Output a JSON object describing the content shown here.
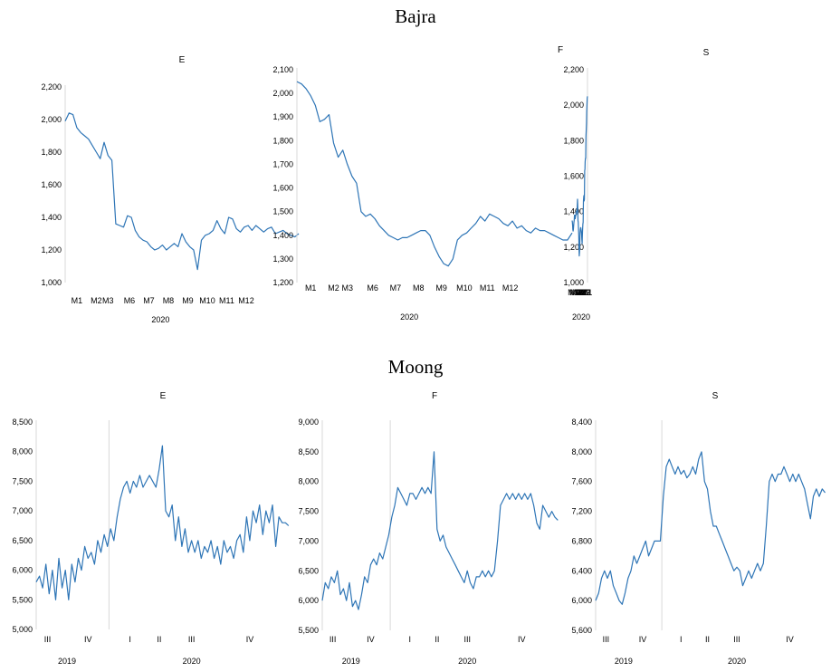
{
  "sections": [
    {
      "title": "Bajra"
    },
    {
      "title": "Moong"
    }
  ],
  "chart_data": [
    {
      "type": "line",
      "group": "Bajra",
      "title": "E",
      "ylim": [
        1000,
        2200
      ],
      "yticks": [
        "1,000",
        "1,200",
        "1,400",
        "1,600",
        "1,800",
        "2,000",
        "2,200"
      ],
      "xlim": [
        0.4,
        12.4
      ],
      "xticks": [
        {
          "label": "M1",
          "x": 1
        },
        {
          "label": "M2",
          "x": 2
        },
        {
          "label": "M3",
          "x": 2.6
        },
        {
          "label": "M6",
          "x": 3.7
        },
        {
          "label": "M7",
          "x": 4.7
        },
        {
          "label": "M8",
          "x": 5.7
        },
        {
          "label": "M9",
          "x": 6.7
        },
        {
          "label": "M10",
          "x": 7.7
        },
        {
          "label": "M11",
          "x": 8.7
        },
        {
          "label": "M12",
          "x": 9.7
        }
      ],
      "xgroups": [
        {
          "label": "2020",
          "x": 5.3
        }
      ],
      "grid": false,
      "color": "#2e75b6",
      "x": [
        0.4,
        0.6,
        0.8,
        1.0,
        1.2,
        1.4,
        1.6,
        1.8,
        2.0,
        2.2,
        2.4,
        2.6,
        2.8,
        3.0,
        3.2,
        3.4,
        3.6,
        3.8,
        4.0,
        4.2,
        4.4,
        4.6,
        4.8,
        5.0,
        5.2,
        5.4,
        5.6,
        5.8,
        6.0,
        6.2,
        6.4,
        6.6,
        6.8,
        7.0,
        7.2,
        7.4,
        7.6,
        7.8,
        8.0,
        8.2,
        8.4,
        8.6,
        8.8,
        9.0,
        9.2,
        9.4,
        9.6,
        9.8,
        10.0,
        10.2,
        10.4,
        10.6,
        10.8,
        11.0,
        11.2,
        11.4,
        11.6,
        11.8,
        12.0,
        12.2,
        12.4
      ],
      "y": [
        1990,
        2040,
        2030,
        1950,
        1920,
        1900,
        1880,
        1840,
        1800,
        1760,
        1860,
        1780,
        1750,
        1360,
        1350,
        1340,
        1410,
        1400,
        1320,
        1280,
        1260,
        1250,
        1220,
        1200,
        1210,
        1230,
        1200,
        1220,
        1240,
        1220,
        1300,
        1250,
        1220,
        1200,
        1080,
        1260,
        1290,
        1300,
        1320,
        1380,
        1330,
        1300,
        1400,
        1390,
        1330,
        1310,
        1340,
        1350,
        1320,
        1350,
        1330,
        1310,
        1330,
        1340,
        1300,
        1310,
        1320,
        1300,
        1290,
        1280,
        1300
      ]
    },
    {
      "type": "line",
      "group": "Bajra",
      "title": "F",
      "ylim": [
        1200,
        2100
      ],
      "yticks": [
        "1,200",
        "1,300",
        "1,400",
        "1,500",
        "1,600",
        "1,700",
        "1,800",
        "1,900",
        "2,000",
        "2,100"
      ],
      "xlim": [
        0.4,
        12.4
      ],
      "xticks": [
        {
          "label": "M1",
          "x": 1
        },
        {
          "label": "M2",
          "x": 2
        },
        {
          "label": "M3",
          "x": 2.6
        },
        {
          "label": "M6",
          "x": 3.7
        },
        {
          "label": "M7",
          "x": 4.7
        },
        {
          "label": "M8",
          "x": 5.7
        },
        {
          "label": "M9",
          "x": 6.7
        },
        {
          "label": "M10",
          "x": 7.7
        },
        {
          "label": "M11",
          "x": 8.7
        },
        {
          "label": "M12",
          "x": 9.7
        }
      ],
      "xgroups": [
        {
          "label": "2020",
          "x": 5.3
        }
      ],
      "grid": false,
      "color": "#2e75b6",
      "x": [
        0.4,
        0.6,
        0.8,
        1.0,
        1.2,
        1.4,
        1.6,
        1.8,
        2.0,
        2.2,
        2.4,
        2.6,
        2.8,
        3.0,
        3.2,
        3.4,
        3.6,
        3.8,
        4.0,
        4.2,
        4.4,
        4.6,
        4.8,
        5.0,
        5.2,
        5.4,
        5.6,
        5.8,
        6.0,
        6.2,
        6.4,
        6.6,
        6.8,
        7.0,
        7.2,
        7.4,
        7.6,
        7.8,
        8.0,
        8.2,
        8.4,
        8.6,
        8.8,
        9.0,
        9.2,
        9.4,
        9.6,
        9.8,
        10.0,
        10.2,
        10.4,
        10.6,
        10.8,
        11.0,
        11.2,
        11.4,
        11.6,
        11.8,
        12.0,
        12.2,
        12.4
      ],
      "y": [
        2050,
        2040,
        2020,
        1990,
        1950,
        1880,
        1890,
        1910,
        1790,
        1730,
        1760,
        1700,
        1650,
        1620,
        1500,
        1480,
        1490,
        1470,
        1440,
        1420,
        1400,
        1390,
        1380,
        1390,
        1390,
        1400,
        1410,
        1420,
        1420,
        1400,
        1350,
        1310,
        1280,
        1270,
        1300,
        1380,
        1400,
        1410,
        1430,
        1450,
        1480,
        1460,
        1490,
        1480,
        1470,
        1450,
        1440,
        1460,
        1430,
        1440,
        1420,
        1410,
        1430,
        1420,
        1420,
        1410,
        1400,
        1390,
        1380,
        1380,
        1410
      ]
    },
    {
      "type": "line",
      "group": "Bajra",
      "title": "S",
      "ylim": [
        1000,
        2200
      ],
      "yticks": [
        "1,000",
        "1,200",
        "1,400",
        "1,600",
        "1,800",
        "2,000",
        "2,200"
      ],
      "xlim": [
        0.4,
        12.4
      ],
      "xticks": [
        {
          "label": "M1",
          "x": 1
        },
        {
          "label": "M2",
          "x": 2
        },
        {
          "label": "M3",
          "x": 2.6
        },
        {
          "label": "M6",
          "x": 3.7
        },
        {
          "label": "M7",
          "x": 4.7
        },
        {
          "label": "M8",
          "x": 5.7
        },
        {
          "label": "M9",
          "x": 6.7
        },
        {
          "label": "M10",
          "x": 7.7
        },
        {
          "label": "M11",
          "x": 8.7
        },
        {
          "label": "M12",
          "x": 9.7
        }
      ],
      "xgroups": [
        {
          "label": "2020",
          "x": 5.3
        }
      ],
      "grid": false,
      "color": "#2e75b6",
      "x": [
        0.4,
        0.6,
        0.8,
        1.0,
        1.2,
        1.4,
        1.6,
        1.8,
        2.0,
        2.2,
        2.4,
        2.6,
        2.8,
        3.0,
        3.2,
        3.4,
        3.6,
        3.8,
        4.0,
        4.2,
        4.4,
        4.6,
        4.8,
        5.0,
        5.2,
        5.4,
        5.6,
        5.8,
        6.0,
        6.2,
        6.4,
        6.6,
        6.8,
        7.0,
        7.2,
        7.4,
        7.6,
        7.8,
        8.0,
        8.2,
        8.4,
        8.6,
        8.8,
        9.0,
        9.2,
        9.4,
        9.6,
        9.8,
        10.0,
        10.2,
        10.4,
        10.6,
        10.8,
        11.0,
        11.2,
        11.4,
        11.6,
        11.8,
        12.0,
        12.2,
        12.4
      ],
      "y": [
        2050,
        2040,
        2000,
        1960,
        1900,
        1860,
        1820,
        1700,
        1700,
        1680,
        1640,
        1630,
        1470,
        1460,
        1490,
        1480,
        1460,
        1340,
        1330,
        1300,
        1260,
        1220,
        1240,
        1270,
        1290,
        1300,
        1310,
        1310,
        1300,
        1280,
        1220,
        1170,
        1150,
        1200,
        1260,
        1300,
        1340,
        1350,
        1440,
        1470,
        1430,
        1410,
        1400,
        1390,
        1400,
        1380,
        1380,
        1370,
        1360,
        1380,
        1370,
        1380,
        1350,
        1340,
        1320,
        1300,
        1290,
        1300,
        1320,
        1340,
        1350
      ]
    },
    {
      "type": "line",
      "group": "Moong",
      "title": "E",
      "ylim": [
        5000,
        8500
      ],
      "yticks": [
        "5,000",
        "5,500",
        "6,000",
        "6,500",
        "7,000",
        "7,500",
        "8,000",
        "8,500"
      ],
      "xlim": [
        0,
        16
      ],
      "xticks": [
        {
          "label": "III",
          "x": 0.7
        },
        {
          "label": "IV",
          "x": 3.2
        },
        {
          "label": "I",
          "x": 5.8
        },
        {
          "label": "II",
          "x": 7.6
        },
        {
          "label": "III",
          "x": 9.6
        },
        {
          "label": "IV",
          "x": 13.2
        }
      ],
      "xgroups": [
        {
          "label": "2019",
          "x": 1.9
        },
        {
          "label": "2020",
          "x": 9.6
        }
      ],
      "divider_x": 4.5,
      "grid": false,
      "color": "#2e75b6",
      "x": [
        0,
        0.2,
        0.4,
        0.6,
        0.8,
        1.0,
        1.2,
        1.4,
        1.6,
        1.8,
        2.0,
        2.2,
        2.4,
        2.6,
        2.8,
        3.0,
        3.2,
        3.4,
        3.6,
        3.8,
        4.0,
        4.2,
        4.4,
        4.6,
        4.8,
        5.0,
        5.2,
        5.4,
        5.6,
        5.8,
        6.0,
        6.2,
        6.4,
        6.6,
        6.8,
        7.0,
        7.2,
        7.4,
        7.6,
        7.8,
        8.0,
        8.2,
        8.4,
        8.6,
        8.8,
        9.0,
        9.2,
        9.4,
        9.6,
        9.8,
        10.0,
        10.2,
        10.4,
        10.6,
        10.8,
        11.0,
        11.2,
        11.4,
        11.6,
        11.8,
        12.0,
        12.2,
        12.4,
        12.6,
        12.8,
        13.0,
        13.2,
        13.4,
        13.6,
        13.8,
        14.0,
        14.2,
        14.4,
        14.6,
        14.8,
        15.0,
        15.2,
        15.4,
        15.6
      ],
      "y": [
        5800,
        5900,
        5700,
        6100,
        5600,
        6000,
        5500,
        6200,
        5700,
        6000,
        5500,
        6100,
        5800,
        6200,
        6000,
        6400,
        6200,
        6300,
        6100,
        6500,
        6300,
        6600,
        6400,
        6700,
        6500,
        6900,
        7200,
        7400,
        7500,
        7300,
        7500,
        7400,
        7600,
        7400,
        7500,
        7600,
        7500,
        7400,
        7700,
        8100,
        7000,
        6900,
        7100,
        6500,
        6900,
        6400,
        6700,
        6300,
        6500,
        6300,
        6500,
        6200,
        6400,
        6300,
        6500,
        6200,
        6400,
        6100,
        6500,
        6300,
        6400,
        6200,
        6500,
        6600,
        6300,
        6900,
        6500,
        7000,
        6800,
        7100,
        6600,
        7000,
        6800,
        7100,
        6400,
        6900,
        6800,
        6800,
        6750
      ]
    },
    {
      "type": "line",
      "group": "Moong",
      "title": "F",
      "ylim": [
        5500,
        9000
      ],
      "yticks": [
        "5,500",
        "6,000",
        "6,500",
        "7,000",
        "7,500",
        "8,000",
        "8,500",
        "9,000"
      ],
      "xlim": [
        0,
        16
      ],
      "xticks": [
        {
          "label": "III",
          "x": 0.7
        },
        {
          "label": "IV",
          "x": 3.2
        },
        {
          "label": "I",
          "x": 5.8
        },
        {
          "label": "II",
          "x": 7.6
        },
        {
          "label": "III",
          "x": 9.6
        },
        {
          "label": "IV",
          "x": 13.2
        }
      ],
      "xgroups": [
        {
          "label": "2019",
          "x": 1.9
        },
        {
          "label": "2020",
          "x": 9.6
        }
      ],
      "divider_x": 4.5,
      "grid": false,
      "color": "#2e75b6",
      "x": [
        0,
        0.2,
        0.4,
        0.6,
        0.8,
        1.0,
        1.2,
        1.4,
        1.6,
        1.8,
        2.0,
        2.2,
        2.4,
        2.6,
        2.8,
        3.0,
        3.2,
        3.4,
        3.6,
        3.8,
        4.0,
        4.2,
        4.4,
        4.6,
        4.8,
        5.0,
        5.2,
        5.4,
        5.6,
        5.8,
        6.0,
        6.2,
        6.4,
        6.6,
        6.8,
        7.0,
        7.2,
        7.4,
        7.6,
        7.8,
        8.0,
        8.2,
        8.4,
        8.6,
        8.8,
        9.0,
        9.2,
        9.4,
        9.6,
        9.8,
        10.0,
        10.2,
        10.4,
        10.6,
        10.8,
        11.0,
        11.2,
        11.4,
        11.6,
        11.8,
        12.0,
        12.2,
        12.4,
        12.6,
        12.8,
        13.0,
        13.2,
        13.4,
        13.6,
        13.8,
        14.0,
        14.2,
        14.4,
        14.6,
        14.8,
        15.0,
        15.2,
        15.4,
        15.6
      ],
      "y": [
        6000,
        6300,
        6200,
        6400,
        6300,
        6500,
        6100,
        6200,
        6000,
        6300,
        5900,
        6000,
        5850,
        6100,
        6400,
        6300,
        6600,
        6700,
        6600,
        6800,
        6700,
        6900,
        7100,
        7400,
        7600,
        7900,
        7800,
        7700,
        7600,
        7800,
        7800,
        7700,
        7800,
        7900,
        7800,
        7900,
        7800,
        8500,
        7200,
        7000,
        7100,
        6900,
        6800,
        6700,
        6600,
        6500,
        6400,
        6300,
        6500,
        6300,
        6200,
        6400,
        6400,
        6500,
        6400,
        6500,
        6400,
        6500,
        7000,
        7600,
        7700,
        7800,
        7700,
        7800,
        7700,
        7800,
        7700,
        7800,
        7700,
        7800,
        7600,
        7300,
        7200,
        7600,
        7500,
        7400,
        7500,
        7400,
        7350
      ]
    },
    {
      "type": "line",
      "group": "Moong",
      "title": "S",
      "ylim": [
        5600,
        8400
      ],
      "yticks": [
        "5,600",
        "6,000",
        "6,400",
        "6,800",
        "7,200",
        "7,600",
        "8,000",
        "8,400"
      ],
      "xlim": [
        0,
        16
      ],
      "xticks": [
        {
          "label": "III",
          "x": 0.7
        },
        {
          "label": "IV",
          "x": 3.2
        },
        {
          "label": "I",
          "x": 5.8
        },
        {
          "label": "II",
          "x": 7.6
        },
        {
          "label": "III",
          "x": 9.6
        },
        {
          "label": "IV",
          "x": 13.2
        }
      ],
      "xgroups": [
        {
          "label": "2019",
          "x": 1.9
        },
        {
          "label": "2020",
          "x": 9.6
        }
      ],
      "divider_x": 4.5,
      "grid": false,
      "color": "#2e75b6",
      "x": [
        0,
        0.2,
        0.4,
        0.6,
        0.8,
        1.0,
        1.2,
        1.4,
        1.6,
        1.8,
        2.0,
        2.2,
        2.4,
        2.6,
        2.8,
        3.0,
        3.2,
        3.4,
        3.6,
        3.8,
        4.0,
        4.2,
        4.4,
        4.6,
        4.8,
        5.0,
        5.2,
        5.4,
        5.6,
        5.8,
        6.0,
        6.2,
        6.4,
        6.6,
        6.8,
        7.0,
        7.2,
        7.4,
        7.6,
        7.8,
        8.0,
        8.2,
        8.4,
        8.6,
        8.8,
        9.0,
        9.2,
        9.4,
        9.6,
        9.8,
        10.0,
        10.2,
        10.4,
        10.6,
        10.8,
        11.0,
        11.2,
        11.4,
        11.6,
        11.8,
        12.0,
        12.2,
        12.4,
        12.6,
        12.8,
        13.0,
        13.2,
        13.4,
        13.6,
        13.8,
        14.0,
        14.2,
        14.4,
        14.6,
        14.8,
        15.0,
        15.2,
        15.4,
        15.6
      ],
      "y": [
        6000,
        6100,
        6300,
        6400,
        6300,
        6400,
        6200,
        6100,
        6000,
        5950,
        6100,
        6300,
        6400,
        6600,
        6500,
        6600,
        6700,
        6800,
        6600,
        6700,
        6800,
        6800,
        6800,
        7400,
        7800,
        7900,
        7800,
        7700,
        7800,
        7700,
        7750,
        7650,
        7700,
        7800,
        7700,
        7900,
        8000,
        7600,
        7500,
        7200,
        7000,
        7000,
        6900,
        6800,
        6700,
        6600,
        6500,
        6400,
        6450,
        6400,
        6200,
        6300,
        6400,
        6300,
        6400,
        6500,
        6400,
        6500,
        7000,
        7600,
        7700,
        7600,
        7700,
        7700,
        7800,
        7700,
        7600,
        7700,
        7600,
        7700,
        7600,
        7500,
        7300,
        7100,
        7400,
        7500,
        7400,
        7500,
        7450
      ]
    }
  ]
}
